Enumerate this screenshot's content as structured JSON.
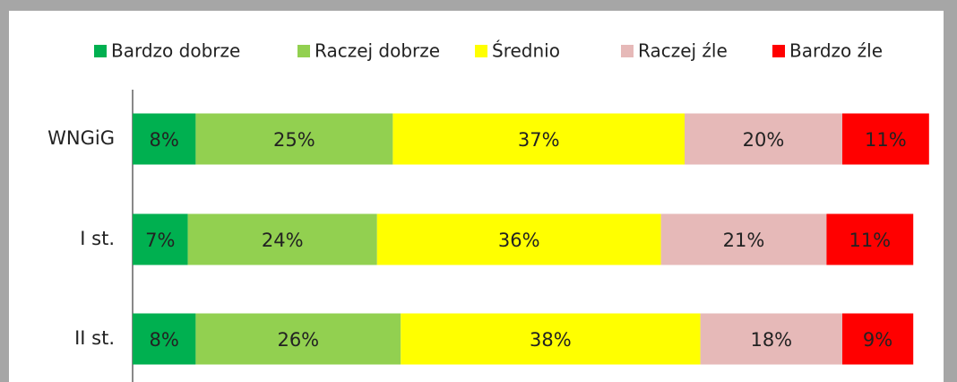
{
  "chart_data": {
    "type": "stacked_bar_horizontal",
    "categories": [
      "WNGiG",
      "I st.",
      "II st."
    ],
    "series": [
      {
        "name": "Bardzo dobrze",
        "color": "#00b050",
        "values": [
          8,
          7,
          8
        ],
        "value_labels": [
          "8%",
          "7%",
          "8%"
        ]
      },
      {
        "name": "Raczej dobrze",
        "color": "#92d050",
        "values": [
          25,
          24,
          26
        ],
        "value_labels": [
          "25%",
          "24%",
          "26%"
        ]
      },
      {
        "name": "Średnio",
        "color": "#ffff00",
        "values": [
          37,
          36,
          38
        ],
        "value_labels": [
          "37%",
          "36%",
          "38%"
        ]
      },
      {
        "name": "Raczej źle",
        "color": "#e6b9b8",
        "values": [
          20,
          21,
          18
        ],
        "value_labels": [
          "20%",
          "21%",
          "18%"
        ]
      },
      {
        "name": "Bardzo źle",
        "color": "#ff0000",
        "values": [
          11,
          11,
          9
        ],
        "value_labels": [
          "11%",
          "11%",
          "9%"
        ]
      }
    ],
    "xlim": [
      0,
      100
    ],
    "legend": "top"
  }
}
